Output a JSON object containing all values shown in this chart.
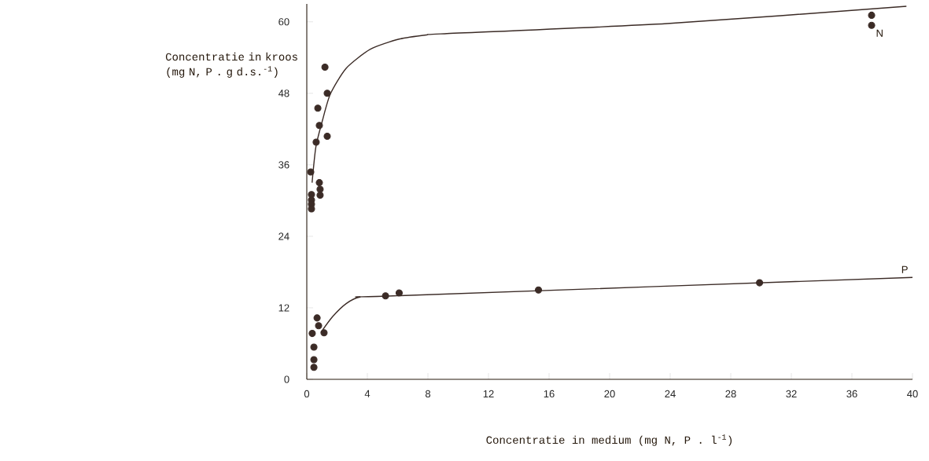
{
  "chart_data": {
    "type": "scatter",
    "xlabel": "Concentratie in medium (mg N, P . l$^{-1}$)",
    "ylabel": "Concentratie in kroos (mg N, P . g d.s.$^{-1}$)",
    "xlim": [
      0,
      40
    ],
    "ylim": [
      0,
      63
    ],
    "xticks": [
      0,
      4,
      8,
      12,
      16,
      20,
      24,
      28,
      32,
      36,
      40
    ],
    "yticks": [
      0,
      12,
      24,
      36,
      48,
      60
    ],
    "line_style": "solid",
    "series": [
      {
        "name": "N",
        "type": "scatter",
        "marker": "circle",
        "color": "#3b2b26",
        "x": [
          1.2,
          1.35,
          0.73,
          0.83,
          1.35,
          0.62,
          0.26,
          0.83,
          0.88,
          0.88,
          0.31,
          0.31,
          0.31,
          0.31,
          37.3,
          37.3
        ],
        "values": [
          52.4,
          48.0,
          45.5,
          42.6,
          40.8,
          39.8,
          34.8,
          33.0,
          31.9,
          30.9,
          31.0,
          30.1,
          29.4,
          28.6,
          61.1,
          59.4
        ]
      },
      {
        "type": "line",
        "marker": "none",
        "color": "#3b2b26",
        "x": [
          0.35,
          0.6,
          1.04,
          1.56,
          2.6,
          4.2,
          6.1,
          7.9,
          9.1,
          23.8,
          39.6
        ],
        "values": [
          33.0,
          39.0,
          43.5,
          47.9,
          52.2,
          55.4,
          57.1,
          57.8,
          58.0,
          59.7,
          62.6
        ]
      },
      {
        "type": "scatter",
        "marker": "circle",
        "color": "#3b2b26",
        "x": [
          0.68,
          0.36,
          0.78,
          1.14,
          0.47,
          0.47,
          0.47,
          5.2,
          6.1,
          15.3,
          29.9
        ],
        "values": [
          10.3,
          7.7,
          9.0,
          7.8,
          5.4,
          3.3,
          2.0,
          14.0,
          14.5,
          15.0,
          16.2
        ]
      },
      {
        "name": "P",
        "type": "line",
        "marker": "none",
        "color": "#3b2b26",
        "x": [
          0.94,
          1.7,
          2.6,
          3.5,
          5.7,
          40
        ],
        "values": [
          7.9,
          10.5,
          12.7,
          13.8,
          14.0,
          17.1
        ]
      }
    ]
  }
}
